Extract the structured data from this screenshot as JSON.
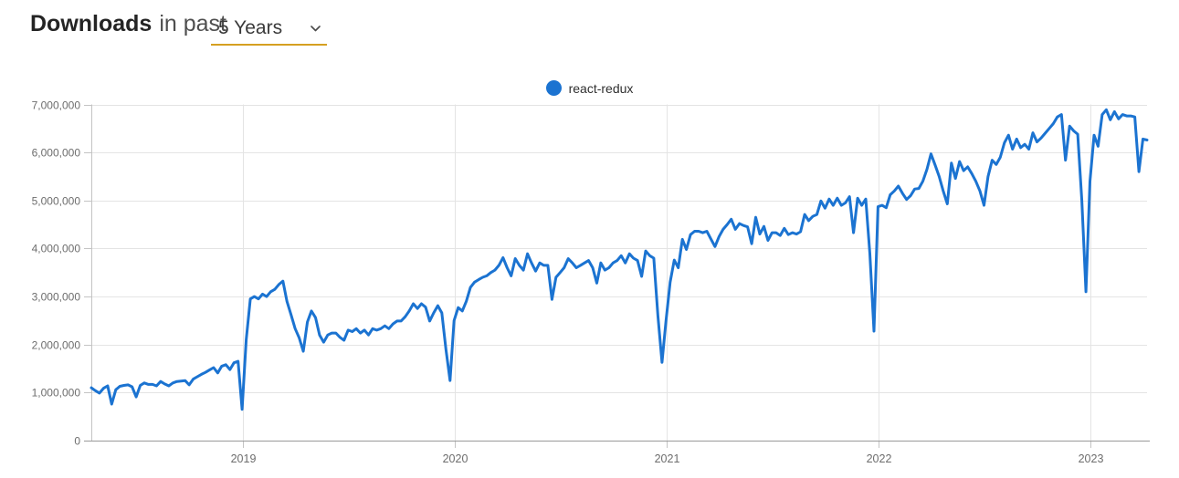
{
  "header": {
    "title": "Downloads",
    "subtitle": "in past",
    "range_select": {
      "value": "5 Years",
      "underline_color": "#d5a021"
    }
  },
  "legend": {
    "items": [
      {
        "label": "react-redux",
        "color": "#1b73d1"
      }
    ]
  },
  "chart_data": {
    "type": "line",
    "title": "Downloads in past 5 Years",
    "xlabel": "",
    "ylabel": "",
    "grid": true,
    "legend_position": "top-center",
    "x_range": [
      2018.2845,
      2023.2672
    ],
    "y_range": [
      0,
      7000000
    ],
    "x_ticks": [
      {
        "value": 2019,
        "label": "2019"
      },
      {
        "value": 2020,
        "label": "2020"
      },
      {
        "value": 2021,
        "label": "2021"
      },
      {
        "value": 2022,
        "label": "2022"
      },
      {
        "value": 2023,
        "label": "2023"
      }
    ],
    "y_ticks": [
      {
        "value": 0,
        "label": "0"
      },
      {
        "value": 1000000,
        "label": "1,000,000"
      },
      {
        "value": 2000000,
        "label": "2,000,000"
      },
      {
        "value": 3000000,
        "label": "3,000,000"
      },
      {
        "value": 4000000,
        "label": "4,000,000"
      },
      {
        "value": 5000000,
        "label": "5,000,000"
      },
      {
        "value": 6000000,
        "label": "6,000,000"
      },
      {
        "value": 7000000,
        "label": "7,000,000"
      }
    ],
    "series": [
      {
        "name": "react-redux",
        "color": "#1b73d1",
        "cadence": "weekly",
        "x_start": 2018.2845,
        "x_step": 0.0192383,
        "values_unit": 1000,
        "values": [
          1100,
          1040,
          990,
          1090,
          1140,
          760,
          1060,
          1130,
          1150,
          1160,
          1120,
          910,
          1150,
          1200,
          1170,
          1170,
          1140,
          1230,
          1180,
          1140,
          1200,
          1230,
          1240,
          1250,
          1160,
          1280,
          1330,
          1380,
          1420,
          1470,
          1520,
          1410,
          1550,
          1580,
          1480,
          1620,
          1650,
          650,
          2100,
          2950,
          3000,
          2950,
          3050,
          3000,
          3100,
          3150,
          3250,
          3320,
          2900,
          2620,
          2330,
          2140,
          1860,
          2470,
          2700,
          2560,
          2200,
          2050,
          2200,
          2240,
          2240,
          2150,
          2090,
          2300,
          2270,
          2330,
          2240,
          2300,
          2200,
          2330,
          2300,
          2330,
          2390,
          2330,
          2430,
          2490,
          2490,
          2580,
          2700,
          2850,
          2750,
          2850,
          2780,
          2490,
          2660,
          2810,
          2660,
          1900,
          1250,
          2500,
          2770,
          2700,
          2900,
          3190,
          3300,
          3350,
          3400,
          3430,
          3500,
          3550,
          3650,
          3810,
          3600,
          3430,
          3790,
          3650,
          3550,
          3890,
          3700,
          3530,
          3700,
          3650,
          3650,
          2940,
          3400,
          3500,
          3600,
          3790,
          3700,
          3600,
          3650,
          3700,
          3750,
          3600,
          3280,
          3700,
          3550,
          3600,
          3700,
          3750,
          3850,
          3700,
          3890,
          3800,
          3750,
          3420,
          3950,
          3850,
          3800,
          2600,
          1630,
          2500,
          3300,
          3760,
          3600,
          4190,
          3980,
          4290,
          4360,
          4360,
          4330,
          4360,
          4200,
          4040,
          4250,
          4400,
          4500,
          4610,
          4400,
          4520,
          4480,
          4450,
          4100,
          4650,
          4300,
          4460,
          4170,
          4330,
          4330,
          4270,
          4420,
          4290,
          4330,
          4300,
          4350,
          4710,
          4580,
          4670,
          4710,
          4990,
          4840,
          5030,
          4900,
          5050,
          4900,
          4950,
          5080,
          4330,
          5050,
          4900,
          5030,
          3890,
          2280,
          4870,
          4900,
          4850,
          5120,
          5200,
          5300,
          5150,
          5020,
          5100,
          5240,
          5250,
          5400,
          5650,
          5970,
          5740,
          5500,
          5200,
          4930,
          5780,
          5460,
          5810,
          5620,
          5700,
          5560,
          5400,
          5200,
          4900,
          5500,
          5840,
          5750,
          5900,
          6200,
          6360,
          6070,
          6280,
          6100,
          6170,
          6070,
          6410,
          6220,
          6300,
          6400,
          6500,
          6600,
          6740,
          6790,
          5840,
          6550,
          6450,
          6380,
          5000,
          3100,
          5400,
          6360,
          6130,
          6790,
          6890,
          6680,
          6850,
          6700,
          6790,
          6760,
          6760,
          6740,
          5600,
          6280,
          6260
        ]
      }
    ]
  }
}
